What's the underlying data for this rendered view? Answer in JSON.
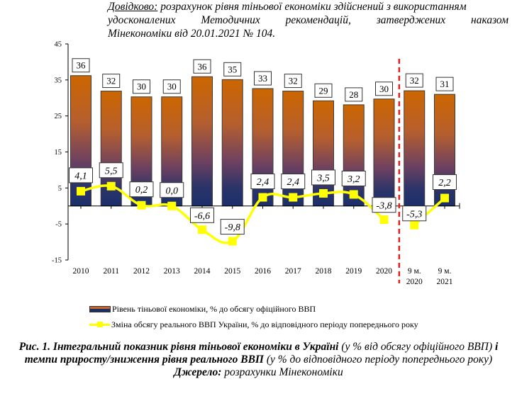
{
  "note": {
    "label": "Довідково:",
    "line1_rest": "розрахунок рівня тіньової економіки здійснений з використанням",
    "line2_words": [
      "удосконалених",
      "Методичних",
      "рекомендацій,",
      "затверджених",
      "наказом"
    ],
    "line3": "Мінекономіки від 20.01.2021 № 104."
  },
  "chart_data": {
    "type": "bar+line",
    "title": "",
    "xlabel": "",
    "ylabel": "",
    "ylim": [
      -15,
      45
    ],
    "yticks": [
      45,
      35,
      25,
      15,
      5,
      -5,
      -15
    ],
    "grid": false,
    "categories": [
      [
        "2010"
      ],
      [
        "2011"
      ],
      [
        "2012"
      ],
      [
        "2013"
      ],
      [
        "2014"
      ],
      [
        "2015"
      ],
      [
        "2016"
      ],
      [
        "2017"
      ],
      [
        "2018"
      ],
      [
        "2019"
      ],
      [
        "2020"
      ],
      [
        "9 м.",
        "2020"
      ],
      [
        "9 м.",
        "2021"
      ]
    ],
    "divider_after_index": 10,
    "divider_color": "#e02020",
    "series": [
      {
        "name": "Рівень тіньової економіки, % до обсягу офіційного ВВП",
        "type": "bar",
        "values": [
          36,
          32,
          30,
          30,
          36,
          35,
          33,
          32,
          29,
          28,
          30,
          32,
          31
        ],
        "labels": [
          "36",
          "32",
          "30",
          "30",
          "36",
          "35",
          "33",
          "32",
          "29",
          "28",
          "30",
          "32",
          "31"
        ],
        "precise_values": [
          36.2,
          31.9,
          30.3,
          30.3,
          35.9,
          35.1,
          32.6,
          31.9,
          29.2,
          28.1,
          29.7,
          32.0,
          31.0
        ],
        "color_top": "#cc6600",
        "color_bottom": "#1b2f6b"
      },
      {
        "name": "Зміна обсягу реального ВВП України, % до відповідного періоду попереднього року",
        "type": "line",
        "values": [
          4.1,
          5.5,
          0.2,
          0.0,
          -6.6,
          -9.8,
          2.4,
          2.4,
          3.5,
          3.2,
          -3.8,
          -5.3,
          2.2
        ],
        "labels": [
          "4,1",
          "5,5",
          "0,2",
          "0,0",
          "-6,6",
          "-9,8",
          "2,4",
          "2,4",
          "3,5",
          "3,2",
          "-3,8",
          "-5,3",
          "2,2"
        ],
        "break_after_index": 10,
        "color": "#ffff00"
      }
    ],
    "legend_position": "bottom"
  },
  "legend": {
    "bar_label": "Рівень тіньової економіки, % до обсягу офіційного ВВП",
    "line_label": "Зміна обсягу реального ВВП України, % до відповідного періоду попереднього року"
  },
  "caption": {
    "bold1": "Рис. 1. Інтегральний показник рівня тіньової економіки в Україні",
    "normal1": " (у % від обсягу офіційного ВВП) ",
    "bold2": "і темпи приросту/зниження рівня реального ВВП",
    "normal2": " (у % до відповідного періоду попереднього року)",
    "source_label": "Джерело:",
    "source_text": " розрахунки Мінекономіки"
  }
}
